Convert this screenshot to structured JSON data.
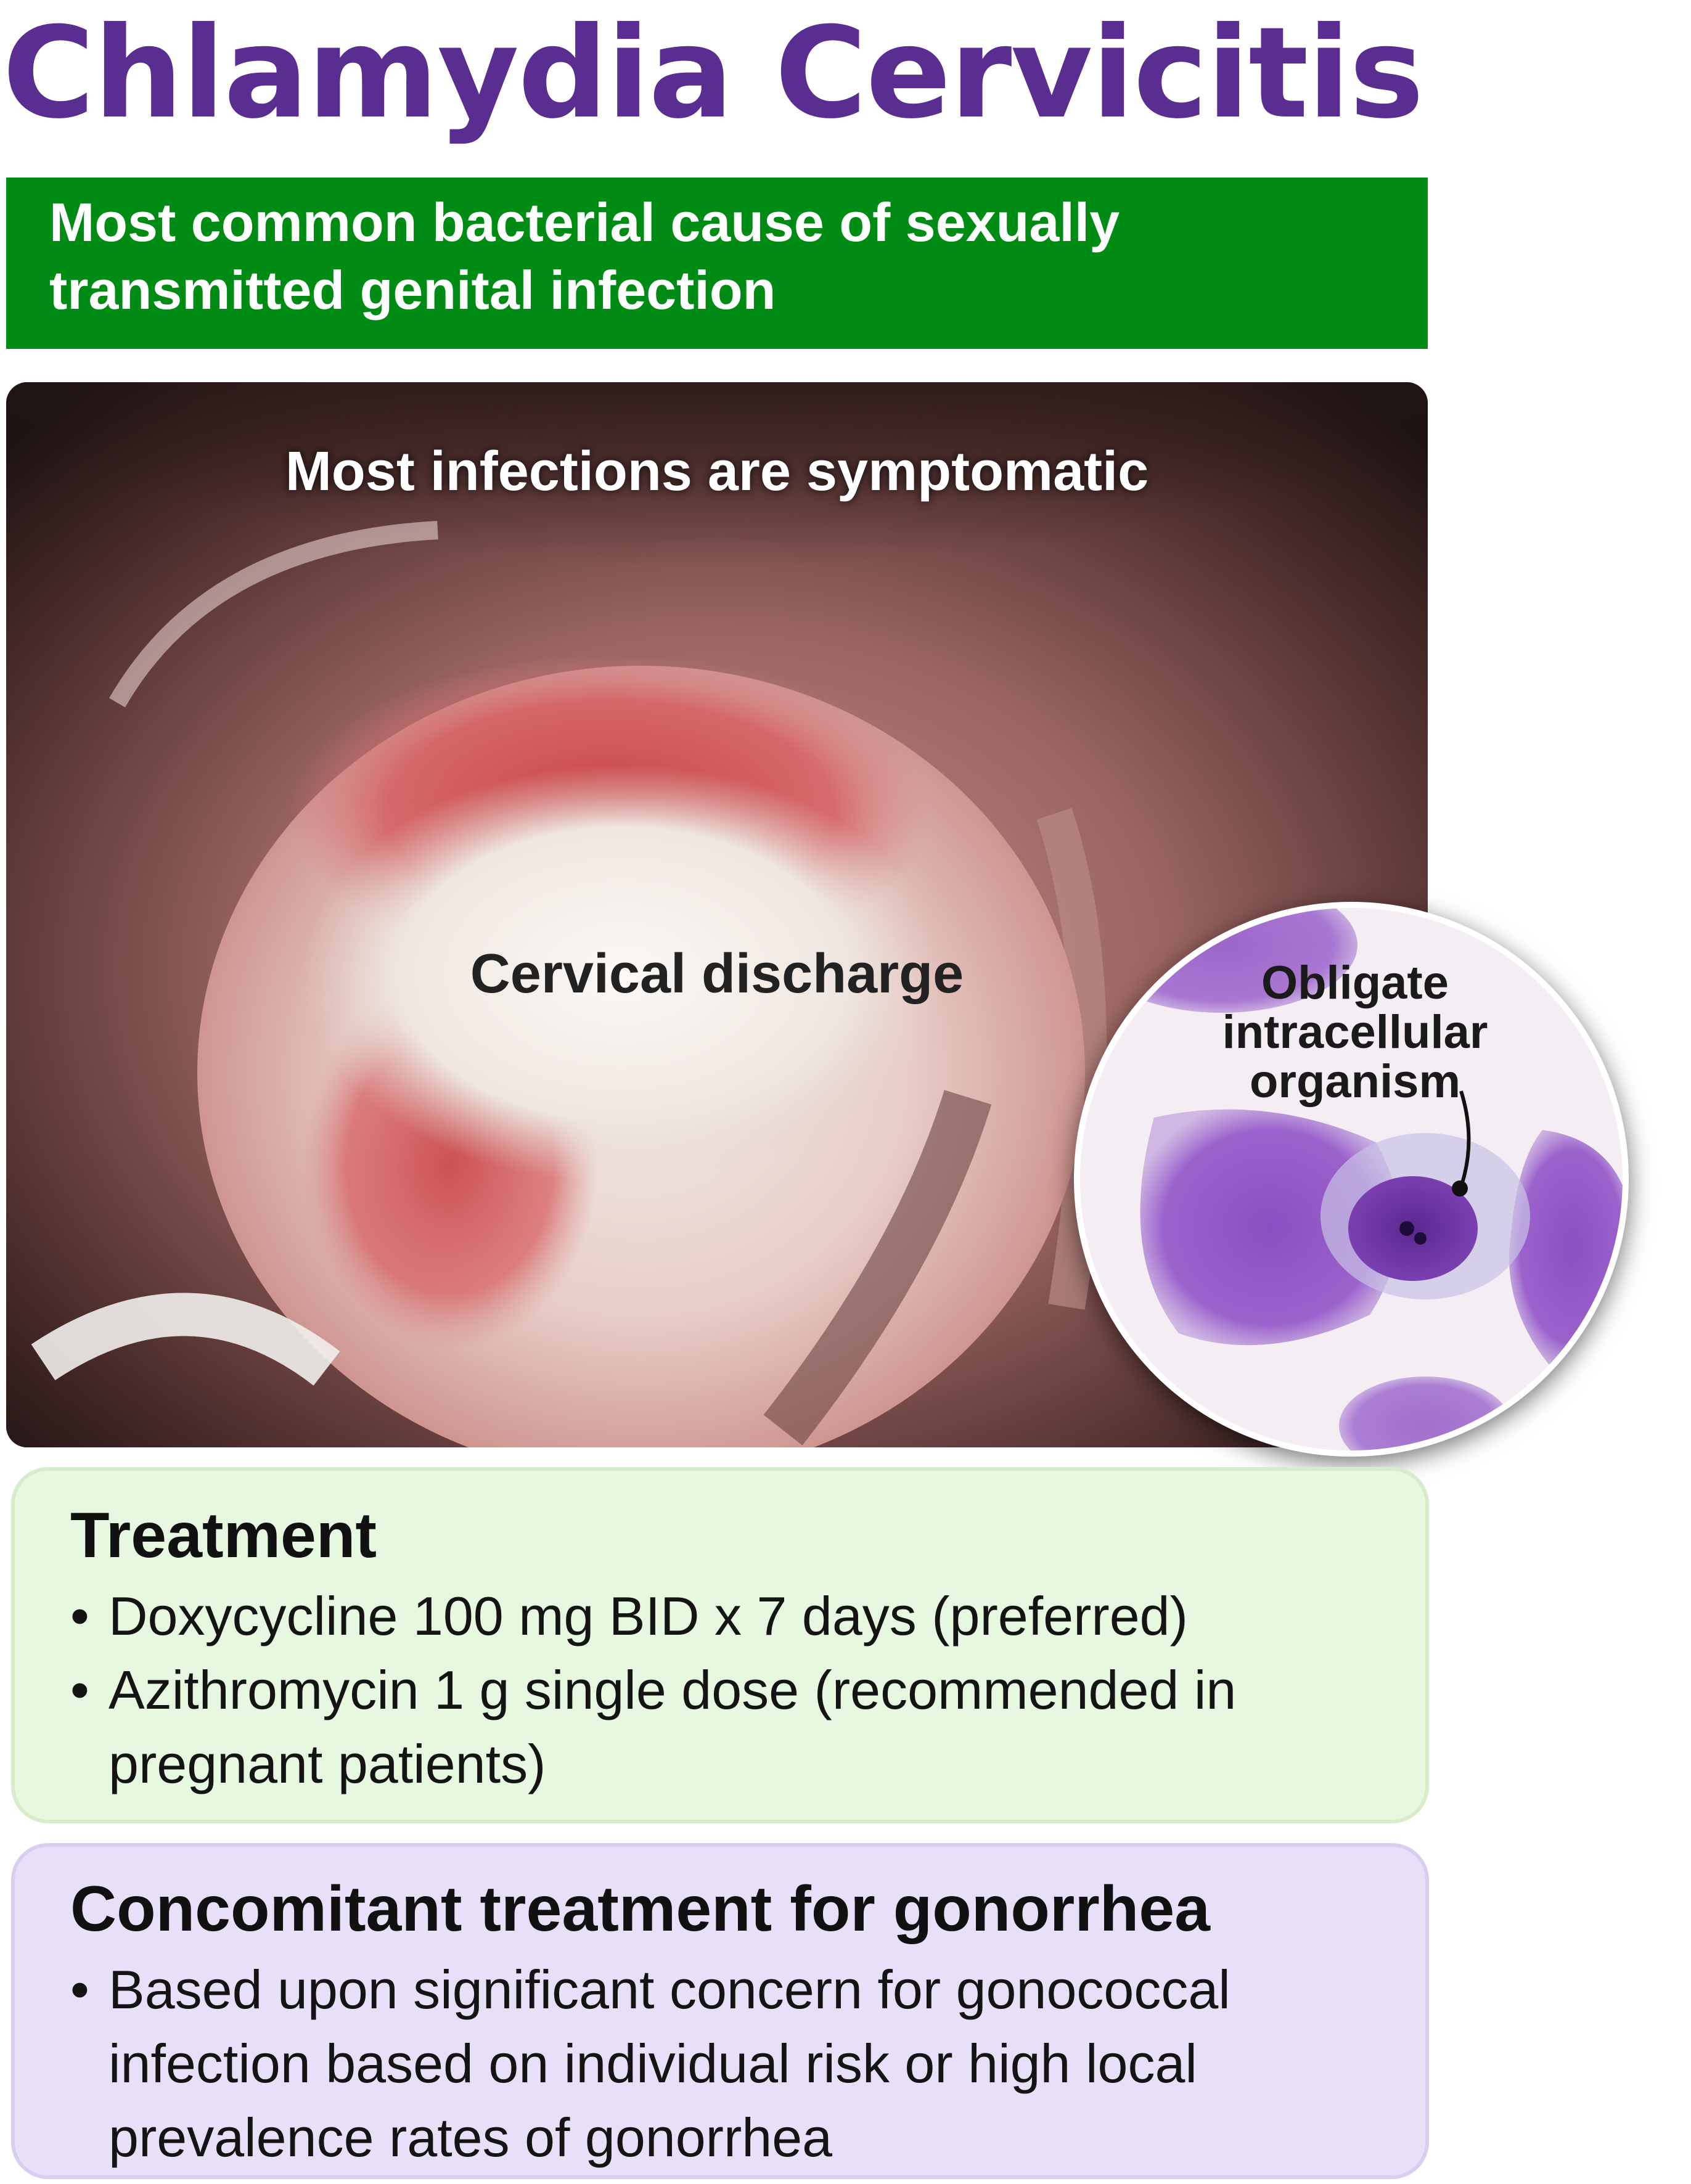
{
  "title": "Chlamydia Cervicitis",
  "banner": {
    "text": "Most common bacterial cause of sexually transmitted genital infection"
  },
  "photo": {
    "caption": "Most infections are symptomatic",
    "discharge_label": "Cervical discharge"
  },
  "inset": {
    "label": "Obligate intracellular organism"
  },
  "treatment": {
    "heading": "Treatment",
    "items": [
      "Doxycycline 100 mg BID x 7 days (preferred)",
      "Azithromycin 1 g single dose (recommended in pregnant patients)"
    ]
  },
  "concomitant": {
    "heading": "Concomitant treatment for gonorrhea",
    "items": [
      "Based upon significant concern for gonococcal infection based on individual risk or high local prevalence rates of gonorrhea"
    ]
  },
  "colors": {
    "title": "#5a2d91",
    "banner": "#008c14",
    "treatment_panel": "#e6f8df",
    "concomitant_panel": "#e8e0f8"
  }
}
